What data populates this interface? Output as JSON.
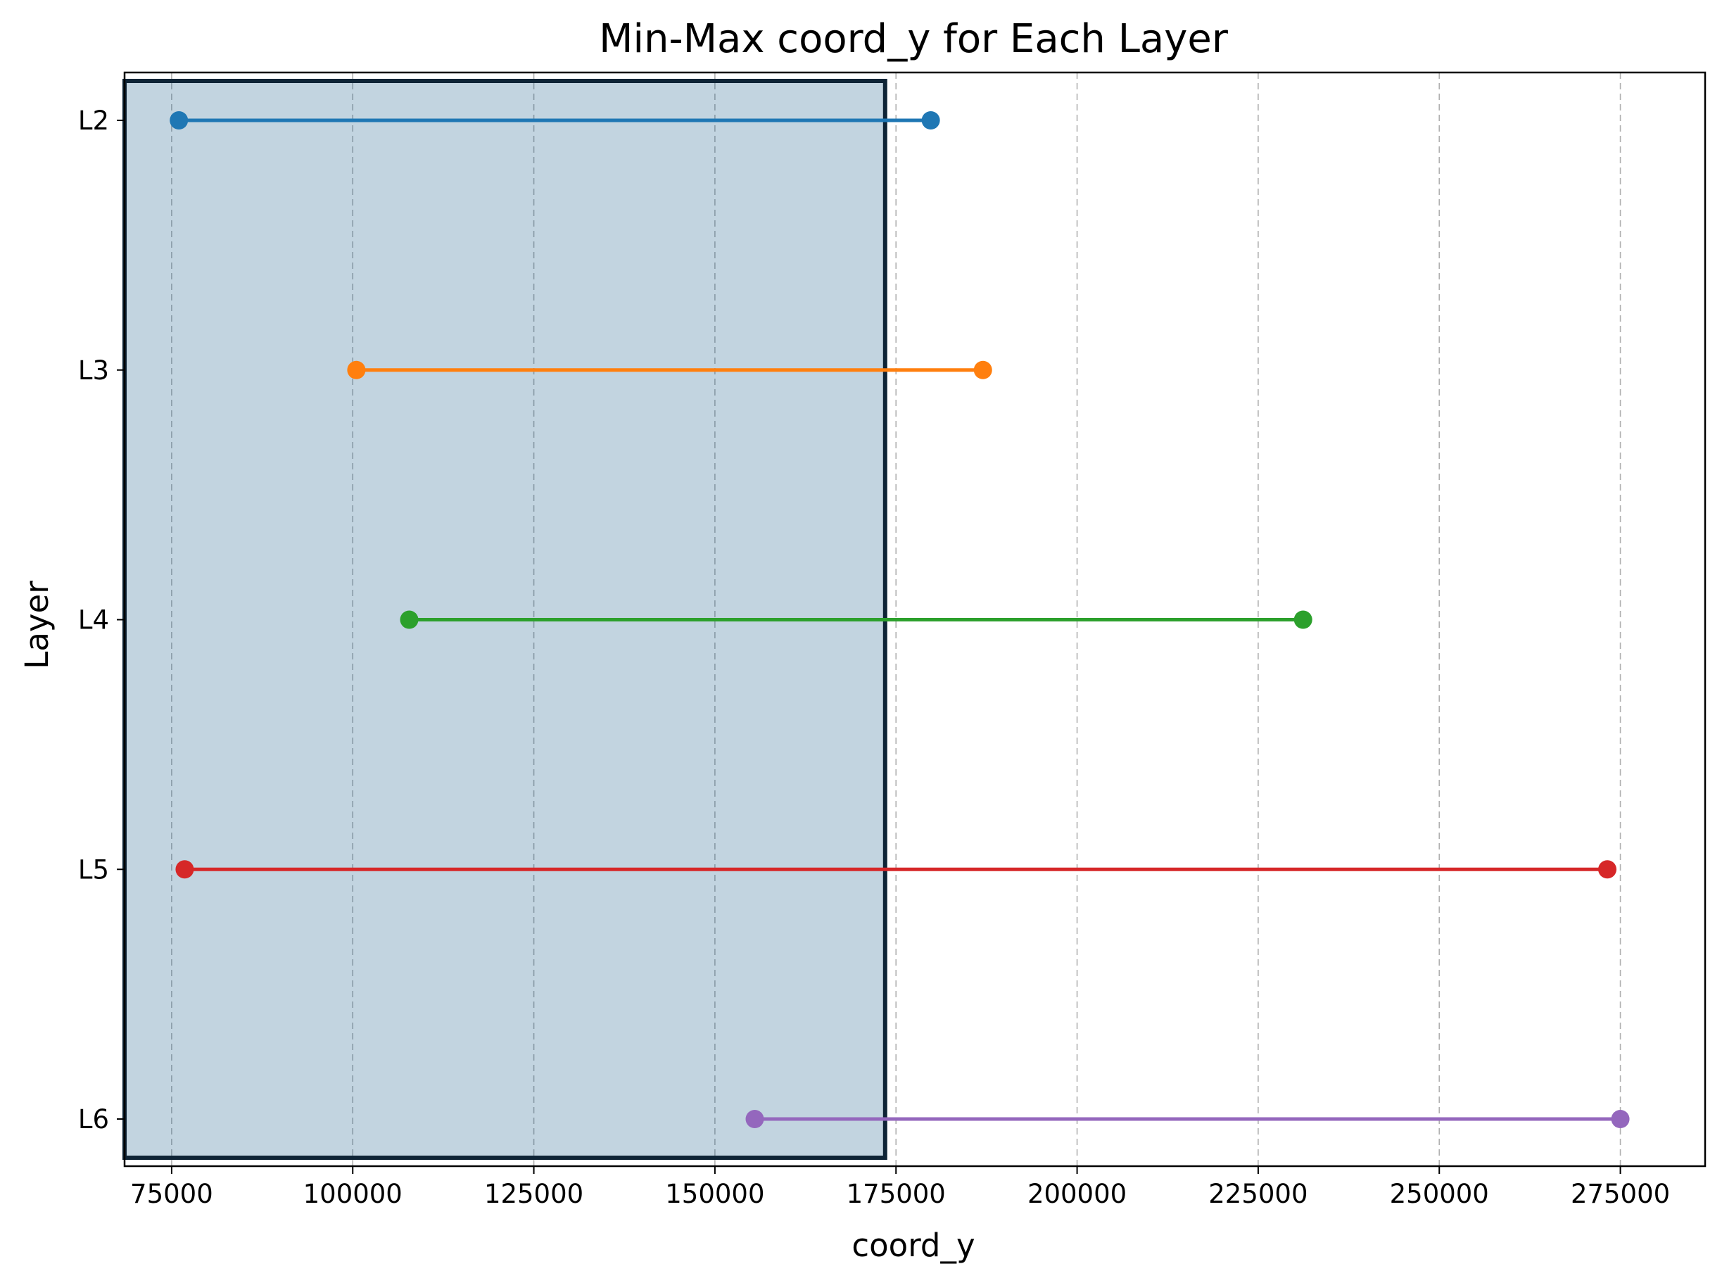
{
  "chart_data": {
    "type": "line",
    "title": "Min-Max coord_y for Each Layer",
    "xlabel": "coord_y",
    "ylabel": "Layer",
    "xlim": [
      68500,
      286700
    ],
    "xticks": [
      75000,
      100000,
      125000,
      150000,
      175000,
      200000,
      225000,
      250000,
      275000
    ],
    "xtick_labels": [
      "75000",
      "100000",
      "125000",
      "150000",
      "175000",
      "200000",
      "225000",
      "250000",
      "275000"
    ],
    "categories": [
      "L2",
      "L3",
      "L4",
      "L5",
      "L6"
    ],
    "grid": "vertical dashed",
    "series": [
      {
        "category": "L2",
        "min": 76000,
        "max": 179800,
        "color": "#1f77b4"
      },
      {
        "category": "L3",
        "min": 100500,
        "max": 187000,
        "color": "#ff7f0e"
      },
      {
        "category": "L4",
        "min": 107800,
        "max": 231200,
        "color": "#2ca02c"
      },
      {
        "category": "L5",
        "min": 76800,
        "max": 273200,
        "color": "#d62728"
      },
      {
        "category": "L6",
        "min": 155500,
        "max": 275000,
        "color": "#9467bd"
      }
    ],
    "highlight_region": {
      "x_range": [
        68500,
        173500
      ],
      "fill": "#1f5f8b",
      "fill_opacity": 0.27,
      "stroke": "#0e2436"
    }
  }
}
